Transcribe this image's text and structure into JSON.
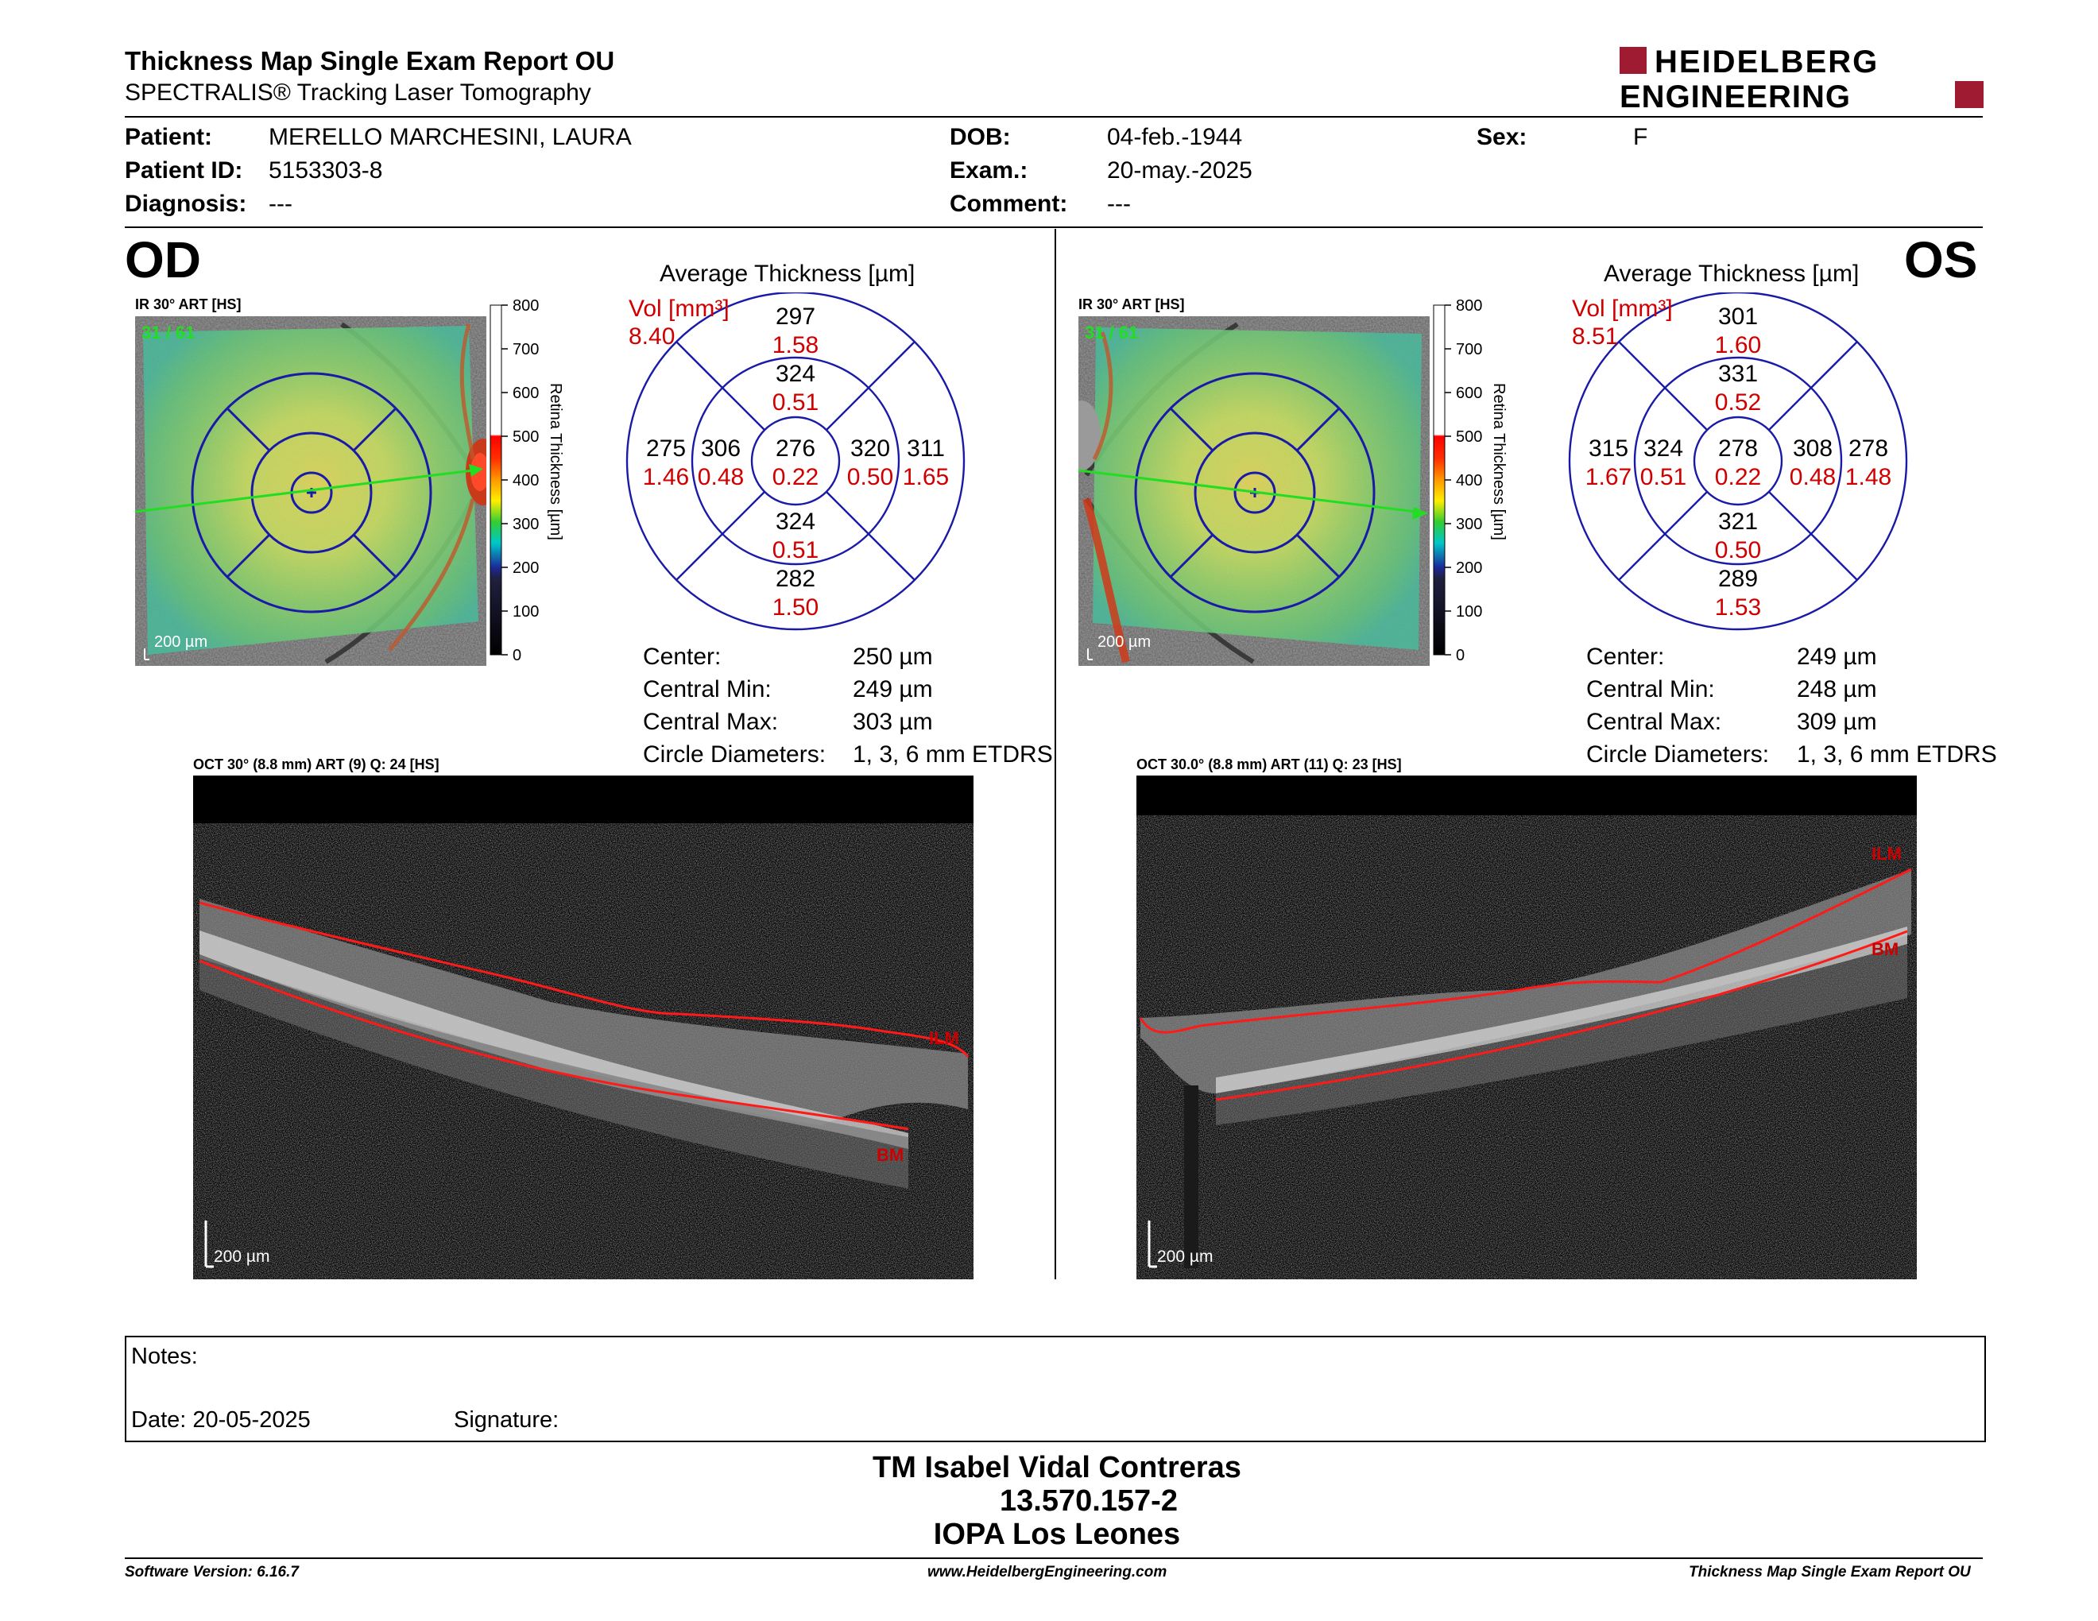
{
  "header": {
    "title": "Thickness Map Single Exam Report OU",
    "subtitle": "SPECTRALIS® Tracking Laser Tomography",
    "logo_line1": "HEIDELBERG",
    "logo_line2": "ENGINEERING"
  },
  "patient": {
    "patient_label": "Patient:",
    "patient_value": "MERELLO MARCHESINI, LAURA",
    "id_label": "Patient ID:",
    "id_value": "5153303-8",
    "diag_label": "Diagnosis:",
    "diag_value": "---",
    "dob_label": "DOB:",
    "dob_value": "04-feb.-1944",
    "exam_label": "Exam.:",
    "exam_value": "20-may.-2025",
    "comment_label": "Comment:",
    "comment_value": "---",
    "sex_label": "Sex:",
    "sex_value": "F"
  },
  "colorbar": {
    "ticks": [
      "800",
      "700",
      "600",
      "500",
      "400",
      "300",
      "200",
      "100",
      "0"
    ],
    "title": "Retina  Thickness [µm]"
  },
  "od": {
    "eye": "OD",
    "ir_label": "IR 30° ART [HS]",
    "frame": "31 / 61",
    "scale": "200 µm",
    "avg_title": "Average Thickness [µm]",
    "vol_label": "Vol [mm³]",
    "vol_total": "8.40",
    "sectors": {
      "outer_sup": [
        "297",
        "1.58"
      ],
      "inner_sup": [
        "324",
        "0.51"
      ],
      "outer_temp": [
        "275",
        "1.46"
      ],
      "inner_temp": [
        "306",
        "0.48"
      ],
      "center": [
        "276",
        "0.22"
      ],
      "inner_nasal": [
        "320",
        "0.50"
      ],
      "outer_nasal": [
        "311",
        "1.65"
      ],
      "inner_inf": [
        "324",
        "0.51"
      ],
      "outer_inf": [
        "282",
        "1.50"
      ]
    },
    "stats": [
      {
        "label": "Center:",
        "value": "250 µm"
      },
      {
        "label": "Central Min:",
        "value": "249 µm"
      },
      {
        "label": "Central Max:",
        "value": "303 µm"
      },
      {
        "label": "Circle Diameters:",
        "value": "1, 3, 6 mm ETDRS"
      }
    ],
    "oct_label": "OCT 30° (8.8 mm) ART (9) Q: 24 [HS]",
    "ilm": "ILM",
    "bm": "BM",
    "oct_scale": "200 µm"
  },
  "os": {
    "eye": "OS",
    "ir_label": "IR 30° ART [HS]",
    "frame": "31 / 61",
    "scale": "200 µm",
    "avg_title": "Average Thickness [µm]",
    "vol_label": "Vol [mm³]",
    "vol_total": "8.51",
    "sectors": {
      "outer_sup": [
        "301",
        "1.60"
      ],
      "inner_sup": [
        "331",
        "0.52"
      ],
      "outer_temp": [
        "315",
        "1.67"
      ],
      "inner_temp": [
        "324",
        "0.51"
      ],
      "center": [
        "278",
        "0.22"
      ],
      "inner_nasal": [
        "308",
        "0.48"
      ],
      "outer_nasal": [
        "278",
        "1.48"
      ],
      "inner_inf": [
        "321",
        "0.50"
      ],
      "outer_inf": [
        "289",
        "1.53"
      ]
    },
    "stats": [
      {
        "label": "Center:",
        "value": "249 µm"
      },
      {
        "label": "Central Min:",
        "value": "248 µm"
      },
      {
        "label": "Central Max:",
        "value": "309 µm"
      },
      {
        "label": "Circle Diameters:",
        "value": "1, 3, 6 mm ETDRS"
      }
    ],
    "oct_label": "OCT 30.0° (8.8 mm) ART (11) Q: 23 [HS]",
    "ilm": "ILM",
    "bm": "BM",
    "oct_scale": "200 µm"
  },
  "notes": {
    "notes_label": "Notes:",
    "date_label": "Date: 20-05-2025",
    "signature_label": "Signature:"
  },
  "signature": {
    "name": "TM Isabel Vidal Contreras",
    "rut": "13.570.157-2",
    "place": "IOPA Los Leones"
  },
  "footer": {
    "software": "Software Version: 6.16.7",
    "website": "www.HeidelbergEngineering.com",
    "report": "Thickness Map Single Exam Report OU"
  },
  "colors": {
    "accent_red": "#9e1b32",
    "value_red": "#d00000",
    "grid_blue": "#1a1aa8",
    "arrow_green": "#22dd22"
  }
}
